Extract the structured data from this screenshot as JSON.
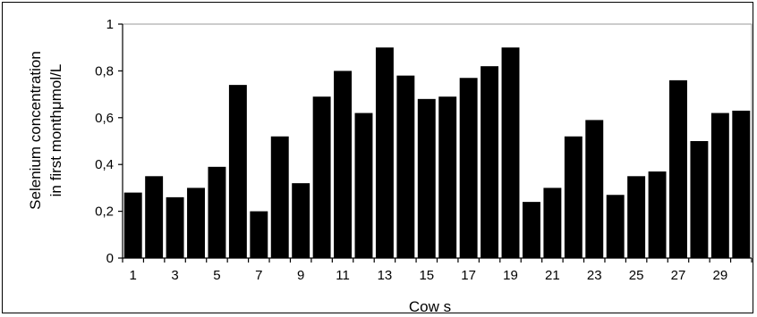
{
  "chart_data": {
    "type": "bar",
    "categories": [
      "1",
      "2",
      "3",
      "4",
      "5",
      "6",
      "7",
      "8",
      "9",
      "10",
      "11",
      "12",
      "13",
      "14",
      "15",
      "16",
      "17",
      "18",
      "19",
      "20",
      "21",
      "22",
      "23",
      "24",
      "25",
      "26",
      "27",
      "28",
      "29",
      "30"
    ],
    "x_tick_labels": [
      "1",
      "3",
      "5",
      "7",
      "9",
      "11",
      "13",
      "15",
      "17",
      "19",
      "21",
      "23",
      "25",
      "27",
      "29"
    ],
    "values": [
      0.28,
      0.35,
      0.26,
      0.3,
      0.39,
      0.74,
      0.2,
      0.52,
      0.32,
      0.69,
      0.8,
      0.62,
      0.9,
      0.78,
      0.68,
      0.69,
      0.77,
      0.82,
      0.9,
      0.24,
      0.3,
      0.52,
      0.59,
      0.27,
      0.35,
      0.37,
      0.76,
      0.5,
      0.62,
      0.63
    ],
    "y_tick_labels": [
      "0",
      "0,2",
      "0,4",
      "0,6",
      "0,8",
      "1"
    ],
    "ylim": [
      0,
      1
    ],
    "title": "",
    "xlabel": "Cow s",
    "ylabel_line1": "Selenium concentration",
    "ylabel_line2": "in first monthμmol/L",
    "grid": false,
    "legend": "none",
    "bar_color": "#000000"
  }
}
